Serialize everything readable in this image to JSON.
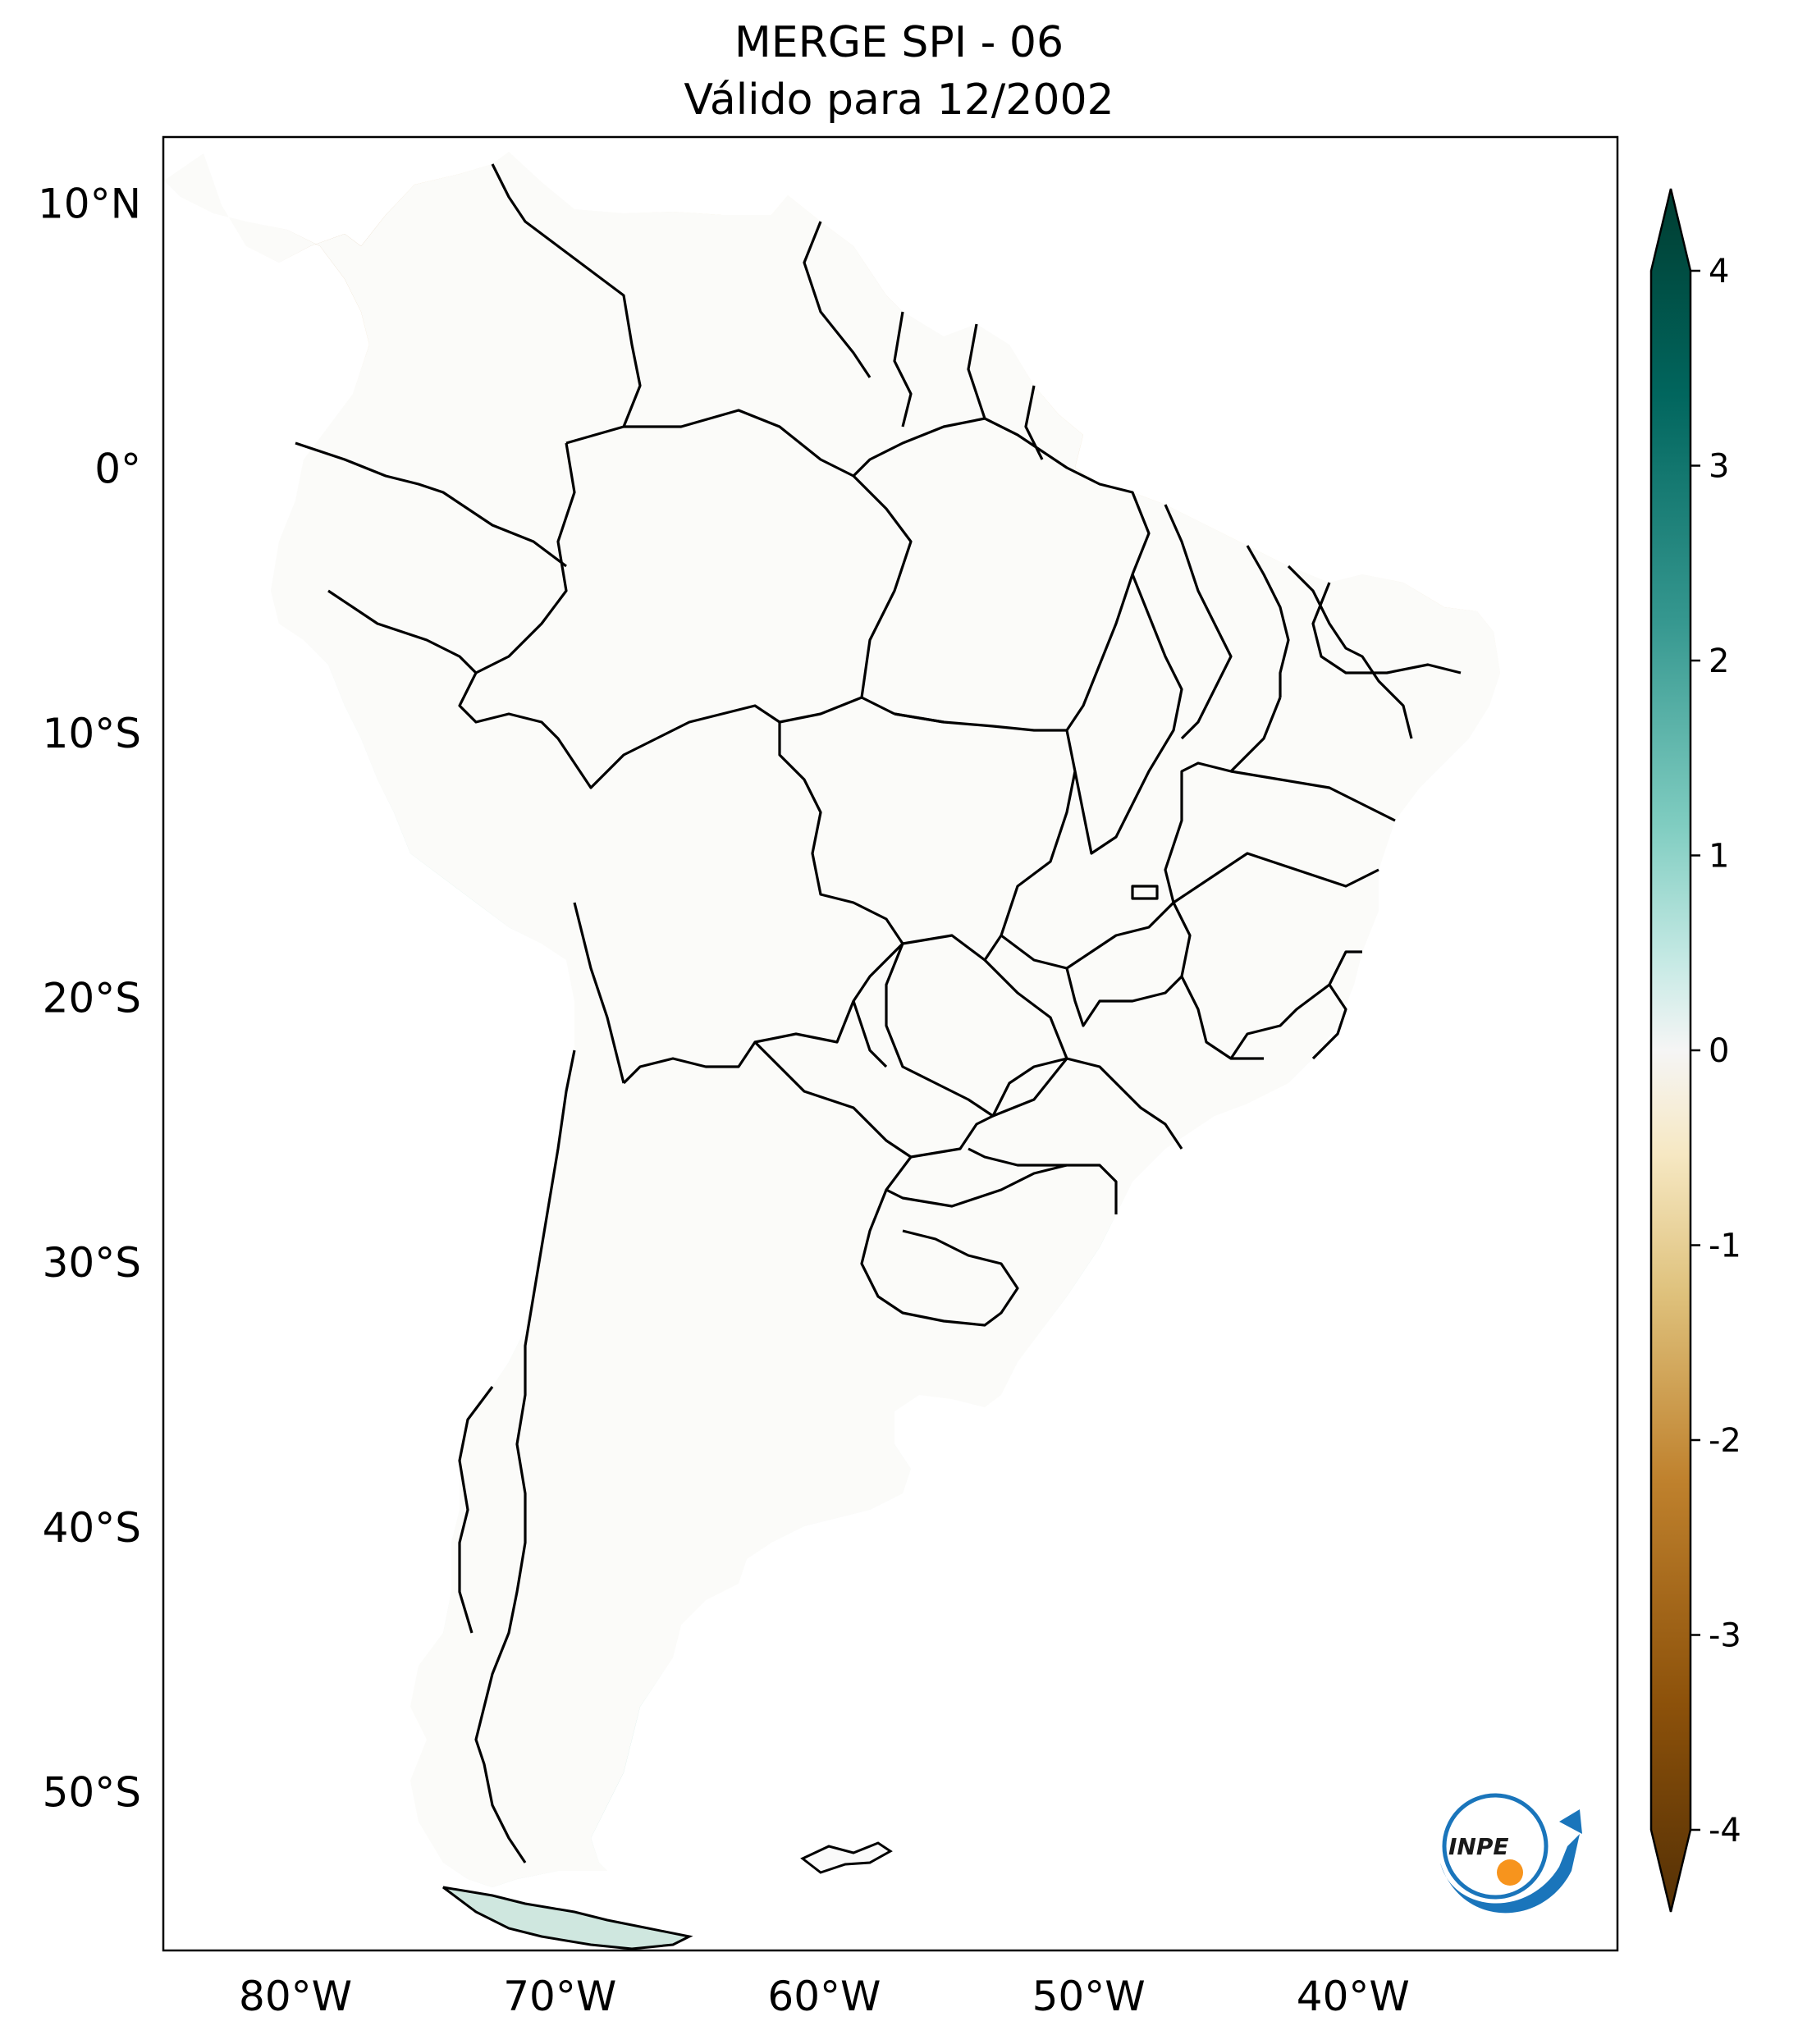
{
  "title": {
    "line1": "MERGE   SPI - 06",
    "line2": "Válido para 12/2002"
  },
  "map": {
    "latitude_labels": [
      "10°N",
      "0°",
      "10°S",
      "20°S",
      "30°S",
      "40°S",
      "50°S"
    ],
    "longitude_labels": [
      "80°W",
      "70°W",
      "60°W",
      "50°W",
      "40°W"
    ],
    "lon_range": [
      -85.0,
      -30.0
    ],
    "lat_range": [
      -56.0,
      12.5
    ]
  },
  "colorbar": {
    "ticks": [
      "4",
      "3",
      "2",
      "1",
      "0",
      "-1",
      "-2",
      "-3",
      "-4"
    ],
    "min": -4,
    "max": 4,
    "colors": {
      "dry_extreme": "#3f2304",
      "dry_strong": "#8c5210",
      "dry_moderate": "#d8a354",
      "dry_mild": "#f1ddb0",
      "neutral": "#f7f7f7",
      "wet_mild": "#c4e9e3",
      "wet_moderate": "#5ab6aa",
      "wet_strong": "#01665e",
      "wet_extreme": "#003c30"
    }
  },
  "logo": {
    "text": "INPE",
    "colors": {
      "blue": "#1a75bb",
      "orange": "#f7941d"
    }
  }
}
